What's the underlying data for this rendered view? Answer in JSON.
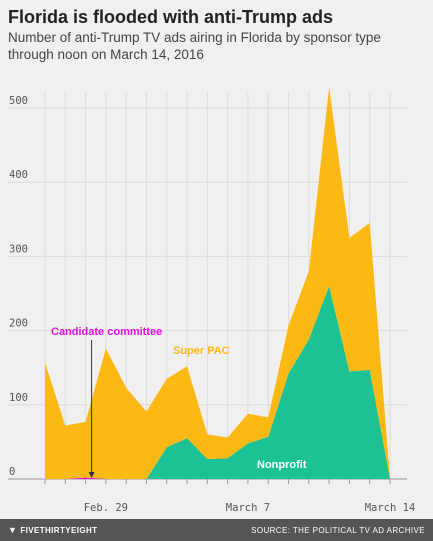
{
  "title": "Florida is flooded with anti-Trump ads",
  "subtitle": "Number of anti-Trump TV ads airing in Florida by sponsor type through noon on March 14, 2016",
  "footer": {
    "brand": "FIVETHIRTYEIGHT",
    "brand_icon": "fivethirtyeight-logo-icon",
    "source": "SOURCE: THE POLITICAL TV AD ARCHIVE"
  },
  "colors": {
    "super_pac": "#fdb913",
    "nonprofit": "#1cc294",
    "candidate_committee": "#e20fe1",
    "grid": "#dcdcdc",
    "footer_bg": "#555555"
  },
  "chart_data": {
    "type": "area",
    "stacked": true,
    "x": [
      "Feb. 26",
      "Feb. 27",
      "Feb. 28",
      "Feb. 29",
      "Mar. 1",
      "Mar. 2",
      "Mar. 3",
      "Mar. 4",
      "Mar. 5",
      "Mar. 6",
      "Mar. 7",
      "Mar. 8",
      "Mar. 9",
      "Mar. 10",
      "Mar. 11",
      "Mar. 12",
      "Mar. 13",
      "Mar. 14"
    ],
    "series": [
      {
        "name": "Nonprofit",
        "values": [
          0,
          0,
          0,
          0,
          0,
          0,
          43,
          55,
          27,
          28,
          48,
          57,
          142,
          188,
          260,
          145,
          147,
          0
        ]
      },
      {
        "name": "Candidate committee",
        "values": [
          0,
          0,
          2,
          0,
          0,
          0,
          0,
          0,
          0,
          0,
          0,
          0,
          0,
          0,
          0,
          0,
          0,
          0
        ]
      },
      {
        "name": "Super PAC",
        "values": [
          157,
          72,
          75,
          176,
          123,
          91,
          92,
          97,
          33,
          28,
          40,
          26,
          65,
          92,
          268,
          180,
          198,
          0
        ]
      }
    ],
    "xticks": [
      {
        "index": 3,
        "label": "Feb. 29"
      },
      {
        "index": 10,
        "label": "March 7"
      },
      {
        "index": 17,
        "label": "March 14"
      }
    ],
    "yticks": [
      0,
      100,
      200,
      300,
      400,
      500
    ],
    "ylim": [
      0,
      540
    ],
    "grid": true,
    "annotations": {
      "candidate_committee": "Candidate committee",
      "super_pac": "Super PAC",
      "nonprofit": "Nonprofit"
    }
  }
}
